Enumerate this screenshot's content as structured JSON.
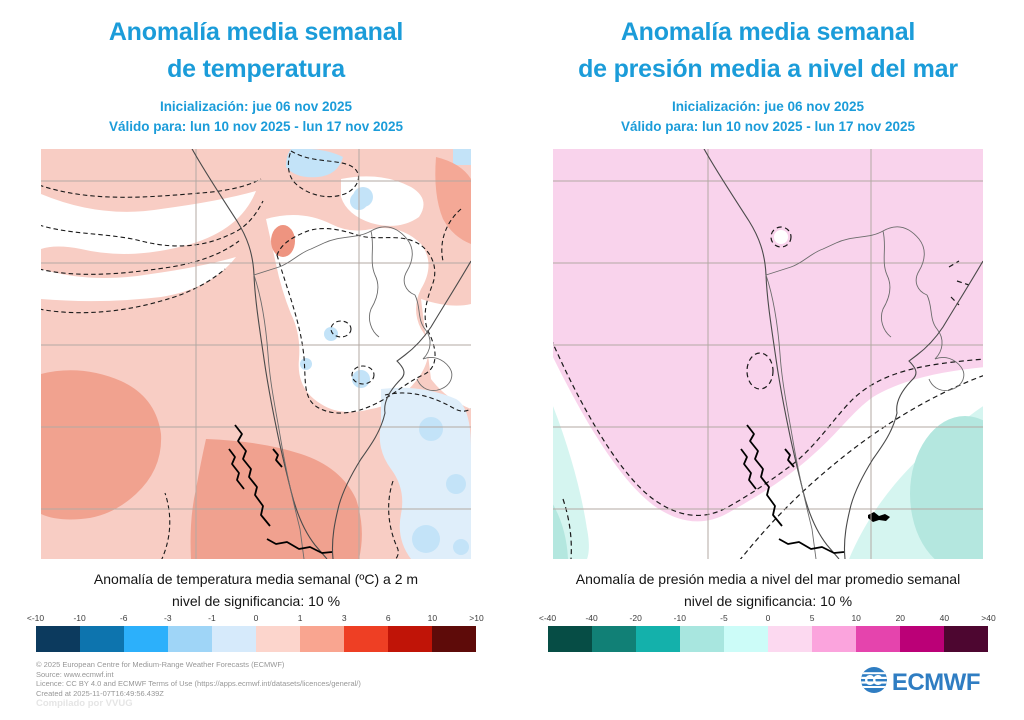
{
  "accent_color": "#1b9cd9",
  "panels": [
    {
      "title_line1": "Anomalía media semanal",
      "title_line2": "de temperatura",
      "initialization": "Inicialización: jue 06 nov 2025",
      "valid": "Válido para: lun 10 nov 2025 - lun 17 nov 2025",
      "caption_line1": "Anomalía de temperatura media semanal (ºC) a 2 m",
      "caption_line2": "nivel de significancia: 10 %",
      "legend": {
        "labels": [
          "<-10",
          "-10",
          "-6",
          "-3",
          "-1",
          "0",
          "1",
          "3",
          "6",
          "10",
          ">10"
        ],
        "colors": [
          "#0c3a5e",
          "#0d74ae",
          "#2cb0fb",
          "#9fd5f7",
          "#d6eafb",
          "#fcd5cc",
          "#f9a590",
          "#ee3f24",
          "#c01407",
          "#5e0b09"
        ]
      },
      "map_main_fill": "#f8cdc4"
    },
    {
      "title_line1": "Anomalía media semanal",
      "title_line2": "de presión media a nivel del mar",
      "initialization": "Inicialización: jue 06 nov 2025",
      "valid": "Válido para: lun 10 nov 2025 - lun 17 nov 2025",
      "caption_line1": "Anomalía de presión media a nivel del mar promedio semanal",
      "caption_line2": "nivel de significancia: 10 %",
      "legend": {
        "labels": [
          "<-40",
          "-40",
          "-20",
          "-10",
          "-5",
          "0",
          "5",
          "10",
          "20",
          "40",
          ">40"
        ],
        "colors": [
          "#064d45",
          "#118076",
          "#14b1ab",
          "#a8e6df",
          "#ccfcf8",
          "#fcd9f0",
          "#fba4dd",
          "#e544ad",
          "#bb0077",
          "#4d0630"
        ]
      },
      "map_main_fill": "#f9d3ec"
    }
  ],
  "footer": {
    "lines": [
      "© 2025 European Centre for Medium-Range Weather Forecasts (ECMWF)",
      "Source: www.ecmwf.int",
      "Licence: CC BY 4.0 and ECMWF Terms of Use (https://apps.ecmwf.int/datasets/licences/general/)",
      "Created at 2025-11-07T16:49:56.439Z"
    ],
    "compiled_by": "Compilado por VVUG"
  },
  "logo": {
    "text": "ECMWF",
    "color": "#2f7dc2",
    "icon": "ecmwf-roundel-icon"
  }
}
